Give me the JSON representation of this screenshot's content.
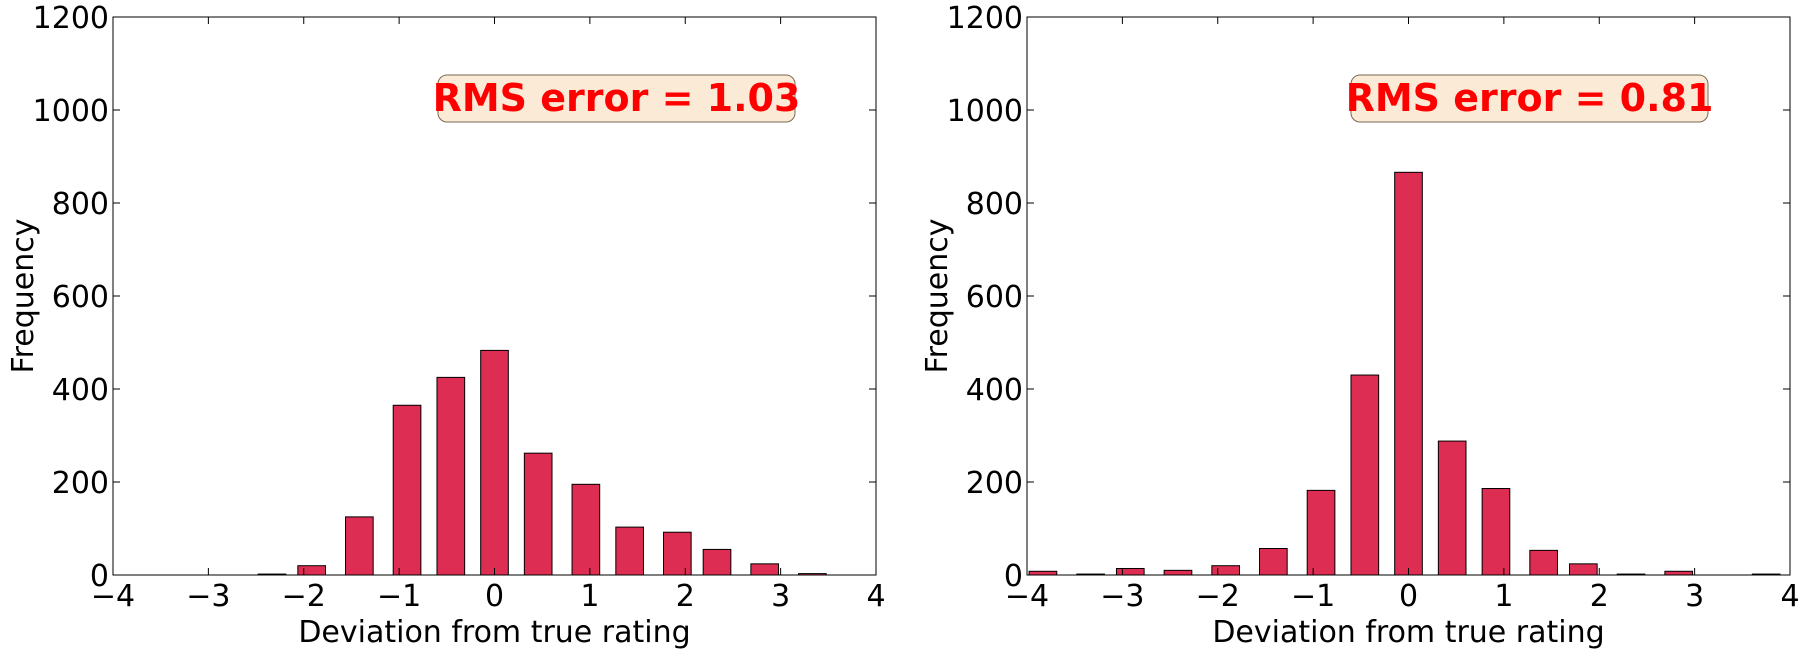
{
  "figure": {
    "panels": [
      {
        "rms_label": "RMS error = 1.03"
      },
      {
        "rms_label": "RMS error = 0.81"
      }
    ]
  },
  "colors": {
    "bar_fill": "#de2d52",
    "bar_edge": "#000000",
    "rms_text": "#ff0000",
    "rms_box_fill": "#fbebd6",
    "rms_box_edge": "#7a6a50"
  },
  "chart_data": [
    {
      "type": "bar",
      "xlabel": "Deviation from true rating",
      "ylabel": "Frequency",
      "xlim": [
        -4,
        4
      ],
      "ylim": [
        0,
        1200
      ],
      "xticks": [
        -4,
        -3,
        -2,
        -1,
        0,
        1,
        2,
        3,
        4
      ],
      "yticks": [
        0,
        200,
        400,
        600,
        800,
        1000,
        1200
      ],
      "annotation": "RMS error = 1.03",
      "annotation_position": "top-right",
      "grid": false,
      "x": [
        -2.333,
        -1.917,
        -1.417,
        -0.917,
        -0.458,
        0,
        0.458,
        0.958,
        1.417,
        1.917,
        2.333,
        2.833,
        3.333
      ],
      "values": [
        2,
        20,
        125,
        365,
        425,
        483,
        262,
        195,
        103,
        92,
        55,
        24,
        3
      ]
    },
    {
      "type": "bar",
      "xlabel": "Deviation from true rating",
      "ylabel": "Frequency",
      "xlim": [
        -4,
        4
      ],
      "ylim": [
        0,
        1200
      ],
      "xticks": [
        -4,
        -3,
        -2,
        -1,
        0,
        1,
        2,
        3,
        4
      ],
      "yticks": [
        0,
        200,
        400,
        600,
        800,
        1000,
        1200
      ],
      "annotation": "RMS error = 0.81",
      "annotation_position": "top-right",
      "grid": false,
      "x": [
        -3.833,
        -3.333,
        -2.917,
        -2.417,
        -1.917,
        -1.417,
        -0.917,
        -0.458,
        0,
        0.458,
        0.917,
        1.417,
        1.833,
        2.333,
        2.833,
        3.75
      ],
      "values": [
        8,
        2,
        14,
        10,
        20,
        57,
        182,
        430,
        866,
        288,
        186,
        53,
        24,
        2,
        8,
        2
      ]
    }
  ]
}
